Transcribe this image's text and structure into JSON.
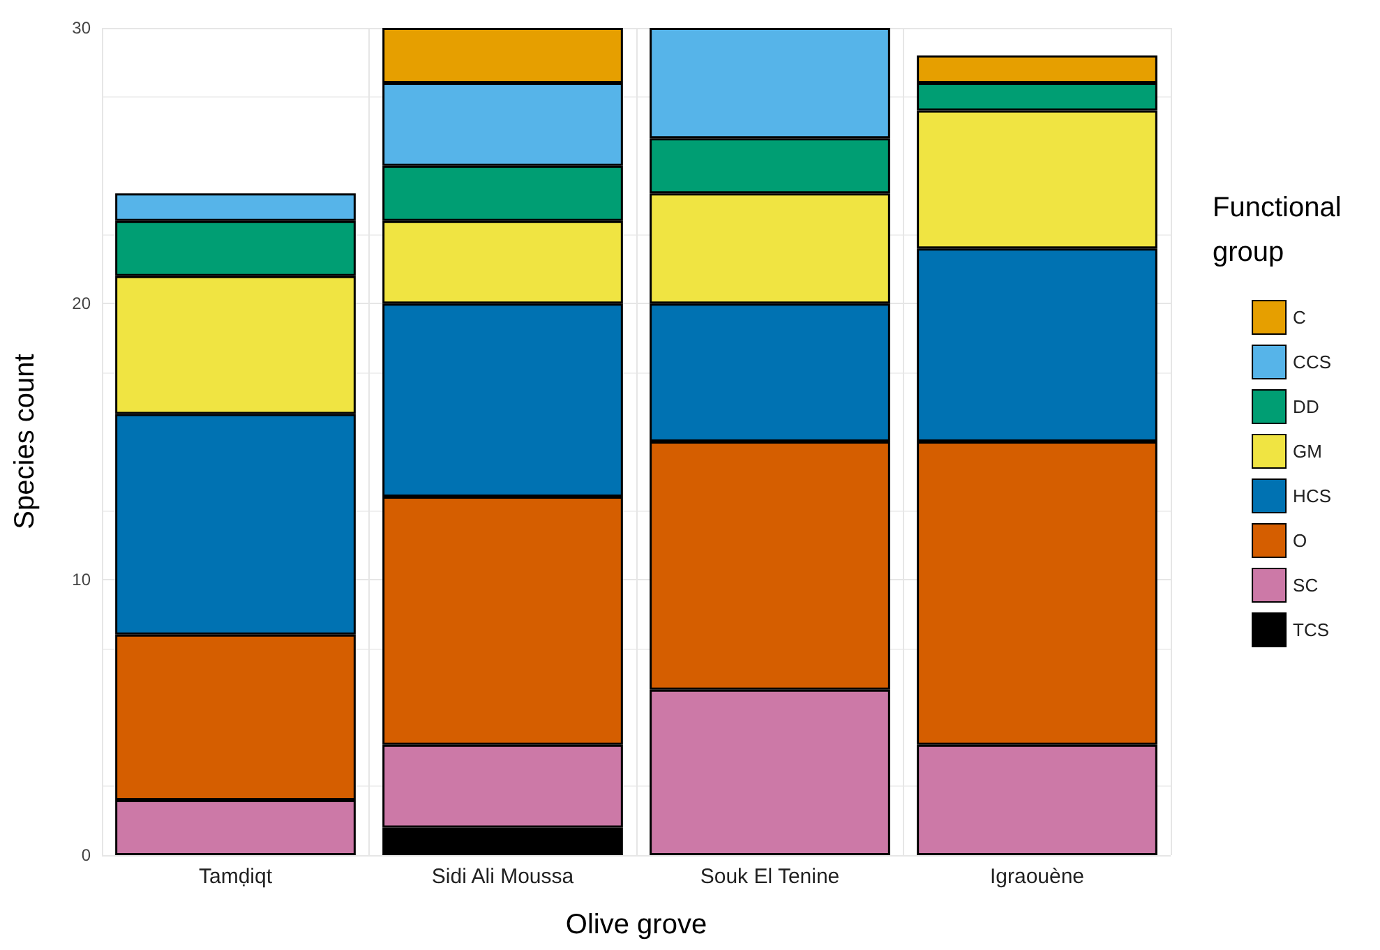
{
  "chart_data": {
    "type": "bar",
    "stacked": true,
    "xlabel": "Olive grove",
    "ylabel": "Species count",
    "legend_title": "Functional group",
    "categories": [
      "Tamḍiqt",
      "Sidi Ali Moussa",
      "Souk El Tenine",
      "Igraouène"
    ],
    "ylim": [
      0,
      30
    ],
    "yticks": [
      0,
      10,
      20,
      30
    ],
    "grid": true,
    "legend": "right",
    "series": [
      {
        "name": "TCS",
        "color": "#000000",
        "values": [
          0,
          1,
          0,
          0
        ]
      },
      {
        "name": "SC",
        "color": "#cc79a7",
        "values": [
          2,
          3,
          6,
          4
        ]
      },
      {
        "name": "O",
        "color": "#d55e00",
        "values": [
          6,
          9,
          9,
          11
        ]
      },
      {
        "name": "HCS",
        "color": "#0072b2",
        "values": [
          8,
          7,
          5,
          7
        ]
      },
      {
        "name": "GM",
        "color": "#f0e442",
        "values": [
          5,
          3,
          4,
          5
        ]
      },
      {
        "name": "DD",
        "color": "#009e73",
        "values": [
          2,
          2,
          2,
          1
        ]
      },
      {
        "name": "CCS",
        "color": "#56b4e9",
        "values": [
          1,
          3,
          4,
          0
        ]
      },
      {
        "name": "C",
        "color": "#e69f00",
        "values": [
          0,
          2,
          0,
          1
        ]
      }
    ]
  }
}
